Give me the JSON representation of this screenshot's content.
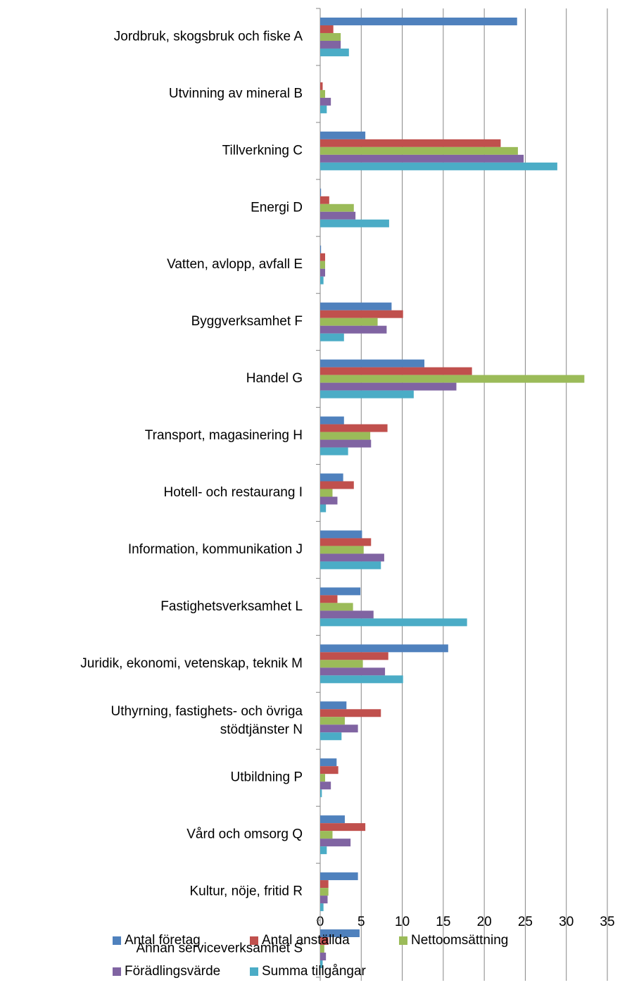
{
  "chart_data": {
    "type": "bar",
    "orientation": "horizontal",
    "categories": [
      "Jordbruk, skogsbruk och fiske A",
      "Utvinning av mineral  B",
      "Tillverkning  C",
      "Energi  D",
      "Vatten, avlopp, avfall E",
      "Byggverksamhet  F",
      "Handel  G",
      "Transport, magasinering  H",
      "Hotell- och restaurang  I",
      "Information, kommunikation  J",
      "Fastighetsverksamhet  L",
      "Juridik, ekonomi, vetenskap, teknik  M",
      "Uthyrning, fastighets- och övriga\nstödtjänster  N",
      "Utbildning  P",
      "Vård och omsorg Q",
      "Kultur, nöje, fritid  R",
      "Annan serviceverksamhet  S"
    ],
    "series": [
      {
        "name": "Antal företag",
        "color": "#4f81bd",
        "values": [
          24,
          0,
          5.5,
          0.1,
          0.1,
          8.7,
          12.7,
          2.9,
          2.8,
          5.1,
          4.9,
          15.6,
          3.2,
          2.0,
          3.0,
          4.6,
          4.8
        ]
      },
      {
        "name": "Antal anställda",
        "color": "#c0504d",
        "values": [
          1.6,
          0.3,
          22,
          1.1,
          0.6,
          10.1,
          18.5,
          8.2,
          4.1,
          6.2,
          2.1,
          8.3,
          7.4,
          2.2,
          5.5,
          1.0,
          1.0
        ]
      },
      {
        "name": "Nettoomsättning",
        "color": "#9bbb59",
        "values": [
          2.5,
          0.6,
          24.1,
          4.1,
          0.6,
          7.0,
          32.2,
          6.1,
          1.5,
          5.3,
          4.0,
          5.2,
          3.0,
          0.6,
          1.5,
          1.0,
          0.5
        ]
      },
      {
        "name": "Förädlingsvärde",
        "color": "#8064a2",
        "values": [
          2.5,
          1.3,
          24.8,
          4.3,
          0.6,
          8.1,
          16.6,
          6.2,
          2.1,
          7.8,
          6.5,
          7.9,
          4.6,
          1.3,
          3.7,
          0.9,
          0.7
        ]
      },
      {
        "name": "Summa tillgångar",
        "color": "#4bacc6",
        "values": [
          3.5,
          0.8,
          28.9,
          8.4,
          0.4,
          2.9,
          11.4,
          3.4,
          0.7,
          7.4,
          17.9,
          10.1,
          2.6,
          0.2,
          0.8,
          0.4,
          0.3
        ]
      }
    ],
    "xlim": [
      0,
      35
    ],
    "xticks": [
      0,
      5,
      10,
      15,
      20,
      25,
      30,
      35
    ],
    "grid": true,
    "legend": "bottom"
  }
}
